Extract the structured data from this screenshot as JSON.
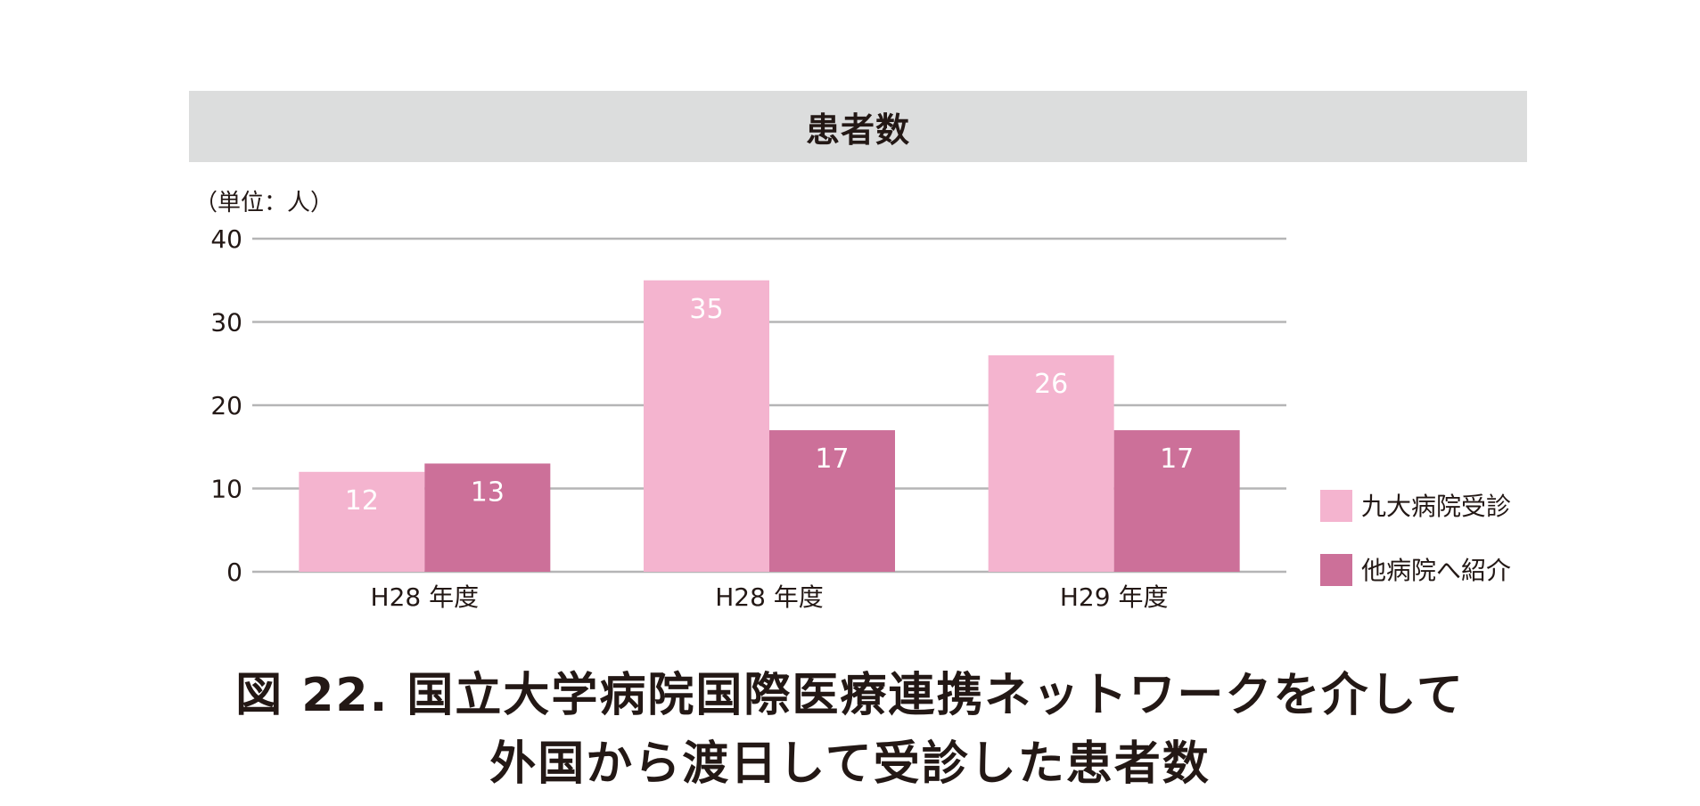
{
  "chart_data": {
    "type": "bar",
    "title": "患者数",
    "unit_label": "（単位：人）",
    "categories": [
      "H28 年度",
      "H28 年度",
      "H29 年度"
    ],
    "series": [
      {
        "name": "九大病院受診",
        "color": "#f4b4cf",
        "values": [
          12,
          35,
          26
        ]
      },
      {
        "name": "他病院へ紹介",
        "color": "#cc7099",
        "values": [
          13,
          17,
          17
        ]
      }
    ],
    "ylim": [
      0,
      40
    ],
    "yticks": [
      0,
      10,
      20,
      30,
      40
    ],
    "grid": true,
    "legend_position": "right",
    "data_label_color": "#ffffff"
  },
  "caption": {
    "line1": "図 22.  国立大学病院国際医療連携ネットワークを介して",
    "line2": "外国から渡日して受診した患者数"
  }
}
